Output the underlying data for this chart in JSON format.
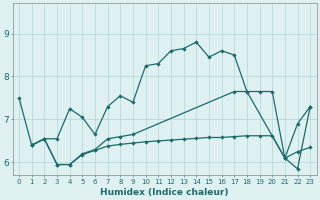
{
  "xlabel": "Humidex (Indice chaleur)",
  "bg_color": "#dff0f0",
  "grid_color": "#b8dada",
  "line_color": "#1a6b6b",
  "xlim": [
    -0.5,
    23.5
  ],
  "ylim": [
    5.7,
    9.7
  ],
  "yticks": [
    6,
    7,
    8,
    9
  ],
  "xticks": [
    0,
    1,
    2,
    3,
    4,
    5,
    6,
    7,
    8,
    9,
    10,
    11,
    12,
    13,
    14,
    15,
    16,
    17,
    18,
    19,
    20,
    21,
    22,
    23
  ],
  "series": [
    {
      "x": [
        0,
        1,
        2,
        3,
        4,
        5,
        6,
        7,
        8,
        9,
        10,
        11,
        12,
        13,
        14,
        15,
        16,
        17,
        18,
        21,
        22,
        23
      ],
      "y": [
        7.5,
        6.4,
        6.55,
        6.55,
        7.25,
        7.05,
        6.65,
        7.3,
        7.55,
        7.4,
        8.25,
        8.3,
        8.6,
        8.65,
        8.8,
        8.45,
        8.6,
        8.5,
        7.65,
        6.1,
        5.85,
        7.3
      ]
    },
    {
      "x": [
        1,
        2,
        3,
        4,
        5,
        6,
        7,
        8,
        9,
        17,
        18,
        19,
        20,
        21,
        22,
        23
      ],
      "y": [
        6.4,
        6.55,
        5.95,
        5.95,
        6.2,
        6.3,
        6.55,
        6.6,
        6.65,
        7.65,
        7.65,
        7.65,
        7.65,
        6.1,
        6.9,
        7.3
      ]
    },
    {
      "x": [
        1,
        2,
        3,
        4,
        5,
        6,
        7,
        8,
        9,
        10,
        11,
        12,
        13,
        14,
        15,
        16,
        17,
        18,
        19,
        20,
        21,
        22,
        23
      ],
      "y": [
        6.4,
        6.55,
        5.95,
        5.95,
        6.18,
        6.28,
        6.38,
        6.42,
        6.45,
        6.48,
        6.5,
        6.52,
        6.54,
        6.56,
        6.58,
        6.58,
        6.6,
        6.62,
        6.62,
        6.62,
        6.1,
        6.25,
        6.35
      ]
    }
  ]
}
